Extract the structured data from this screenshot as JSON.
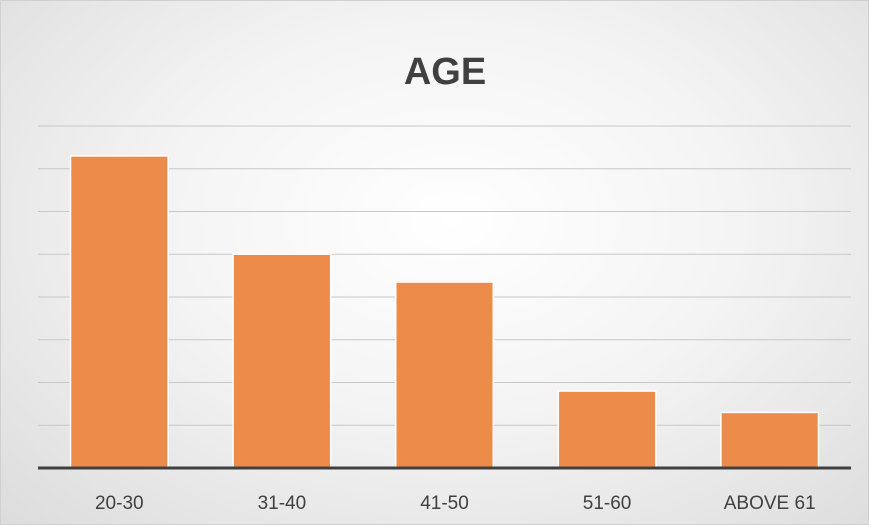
{
  "chart_data": {
    "type": "bar",
    "title": "AGE",
    "xlabel": "",
    "ylabel": "",
    "categories": [
      "20-30",
      "31-40",
      "41-50",
      "51-60",
      "ABOVE 61"
    ],
    "values": [
      73,
      50,
      43.5,
      18,
      13
    ],
    "ylim": [
      0,
      80
    ],
    "grid": true,
    "legend": "none",
    "y_tick_labels_shown": false,
    "colors": {
      "bar": "#ED8B4A",
      "axis": "#404040",
      "grid": "#C8C8C8",
      "text": "#404040"
    }
  }
}
